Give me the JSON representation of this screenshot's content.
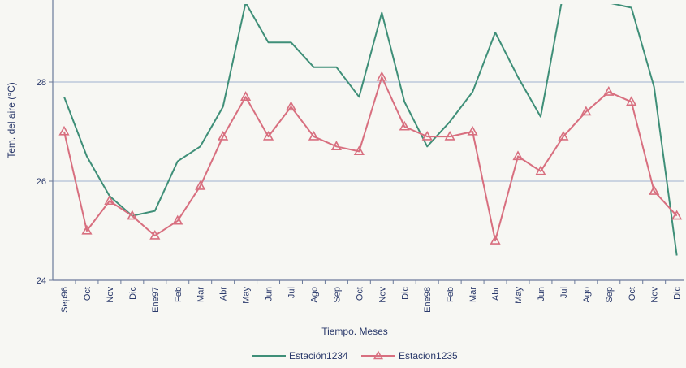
{
  "chart_data": {
    "type": "line",
    "categories": [
      "Sep96",
      "Oct",
      "Nov",
      "Dic",
      "Ene97",
      "Feb",
      "Mar",
      "Abr",
      "May",
      "Jun",
      "Jul",
      "Ago",
      "Sep",
      "Oct",
      "Nov",
      "Dic",
      "Ene98",
      "Feb",
      "Mar",
      "Abr",
      "May",
      "Jun",
      "Jul",
      "Ago",
      "Sep",
      "Oct",
      "Nov",
      "Dic"
    ],
    "series": [
      {
        "name": "Estación1234",
        "color": "#3f8f78",
        "marker": "none",
        "values": [
          27.7,
          26.5,
          25.7,
          25.3,
          25.4,
          26.4,
          26.7,
          27.5,
          29.6,
          28.8,
          28.8,
          28.3,
          28.3,
          27.7,
          29.4,
          27.6,
          26.7,
          27.2,
          27.8,
          29.0,
          28.1,
          27.3,
          29.8,
          29.9,
          29.6,
          29.5,
          27.9,
          24.5
        ]
      },
      {
        "name": "Estacion1235",
        "color": "#d86f7f",
        "marker": "triangle",
        "values": [
          27.0,
          25.0,
          25.6,
          25.3,
          24.9,
          25.2,
          25.9,
          26.9,
          27.7,
          26.9,
          27.5,
          26.9,
          26.7,
          26.6,
          28.1,
          27.1,
          26.9,
          26.9,
          27.0,
          24.8,
          26.5,
          26.2,
          26.9,
          27.4,
          27.8,
          27.6,
          25.8,
          25.3
        ]
      }
    ],
    "xlabel": "Tiempo. Meses",
    "ylabel": "Tem. del aire (°C)",
    "ylim": [
      24,
      29.6
    ],
    "yticks": [
      24,
      26,
      28
    ],
    "grid": true,
    "legend_position": "bottom-center"
  }
}
